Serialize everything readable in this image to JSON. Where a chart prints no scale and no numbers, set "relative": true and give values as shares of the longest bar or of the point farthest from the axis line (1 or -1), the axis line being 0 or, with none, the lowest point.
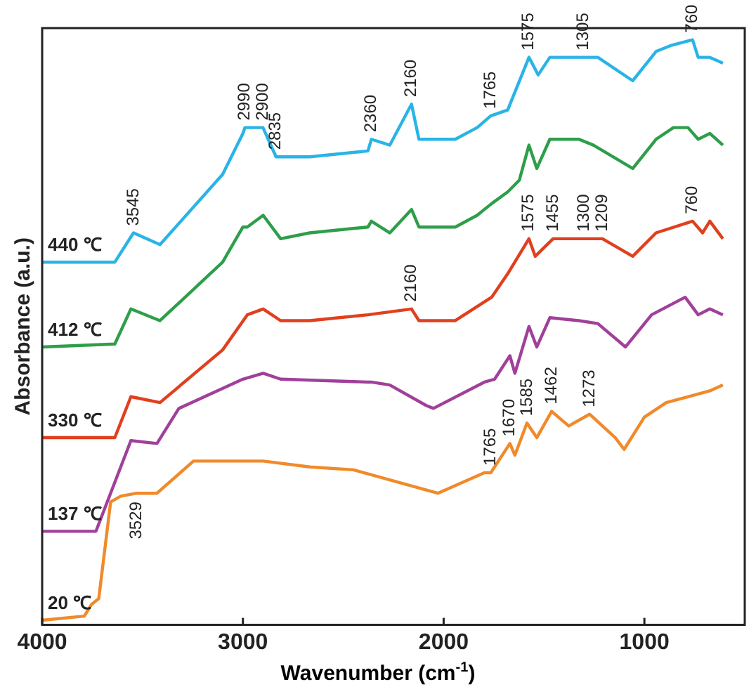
{
  "chart_data": {
    "type": "line",
    "relative": true,
    "xlabel": "Wavenumber (cm$^{-1}$)",
    "ylabel": "Absorbance (a.u.)",
    "xlim": [
      4000,
      500
    ],
    "xticks": [
      4000,
      3000,
      2000,
      1000
    ],
    "grid": false,
    "legend": false,
    "marker": "none",
    "line_style": "solid",
    "series": [
      {
        "name": "440 ℃",
        "color": "#2ab4e6",
        "x": [
          4000,
          3638,
          3545,
          3413,
          3101,
          3000,
          2990,
          2900,
          2835,
          2667,
          2377,
          2360,
          2268,
          2160,
          2123,
          1942,
          1833,
          1765,
          1681,
          1575,
          1529,
          1471,
          1399,
          1305,
          1232,
          1058,
          942,
          870,
          760,
          732,
          674,
          609
        ],
        "values": [
          0.62,
          0.62,
          0.67,
          0.65,
          0.77,
          0.84,
          0.85,
          0.85,
          0.8,
          0.8,
          0.81,
          0.83,
          0.82,
          0.89,
          0.83,
          0.83,
          0.85,
          0.87,
          0.88,
          0.97,
          0.94,
          0.97,
          0.97,
          0.97,
          0.97,
          0.93,
          0.98,
          0.99,
          1.0,
          0.97,
          0.97,
          0.96
        ]
      },
      {
        "name": "412 ℃",
        "color": "#2e9e4a",
        "x": [
          4000,
          3638,
          3558,
          3413,
          3101,
          3000,
          2978,
          2899,
          2812,
          2667,
          2377,
          2360,
          2268,
          2160,
          2123,
          1942,
          1833,
          1761,
          1681,
          1623,
          1575,
          1536,
          1471,
          1326,
          1254,
          1058,
          942,
          855,
          783,
          732,
          674,
          609
        ],
        "values": [
          0.475,
          0.48,
          0.54,
          0.52,
          0.62,
          0.68,
          0.68,
          0.7,
          0.66,
          0.67,
          0.68,
          0.69,
          0.67,
          0.71,
          0.68,
          0.68,
          0.7,
          0.72,
          0.74,
          0.76,
          0.82,
          0.78,
          0.83,
          0.83,
          0.82,
          0.78,
          0.83,
          0.85,
          0.85,
          0.83,
          0.84,
          0.82
        ]
      },
      {
        "name": "330 ℃",
        "color": "#e0401e",
        "x": [
          4000,
          3638,
          3558,
          3413,
          3101,
          2978,
          2899,
          2812,
          2667,
          2377,
          2160,
          2123,
          1942,
          1761,
          1681,
          1575,
          1544,
          1455,
          1300,
          1209,
          1058,
          942,
          760,
          710,
          674,
          609
        ],
        "values": [
          0.32,
          0.32,
          0.39,
          0.38,
          0.47,
          0.53,
          0.54,
          0.52,
          0.52,
          0.53,
          0.54,
          0.52,
          0.52,
          0.56,
          0.6,
          0.66,
          0.63,
          0.66,
          0.66,
          0.66,
          0.63,
          0.67,
          0.69,
          0.67,
          0.69,
          0.66
        ]
      },
      {
        "name": "137 ℃",
        "color": "#a0409a",
        "x": [
          4000,
          3732,
          3558,
          3428,
          3319,
          3000,
          2899,
          2812,
          2377,
          2360,
          2268,
          2087,
          2051,
          1797,
          1746,
          1670,
          1645,
          1575,
          1536,
          1471,
          1326,
          1232,
          1094,
          964,
          797,
          732,
          674,
          609
        ],
        "values": [
          0.16,
          0.16,
          0.315,
          0.31,
          0.37,
          0.42,
          0.43,
          0.42,
          0.415,
          0.415,
          0.41,
          0.375,
          0.37,
          0.415,
          0.42,
          0.46,
          0.43,
          0.51,
          0.475,
          0.525,
          0.52,
          0.515,
          0.475,
          0.53,
          0.56,
          0.53,
          0.54,
          0.53
        ]
      },
      {
        "name": "20 ℃",
        "color": "#f08a2a",
        "x": [
          4000,
          3790,
          3754,
          3718,
          3659,
          3609,
          3529,
          3428,
          3246,
          3101,
          2899,
          2667,
          2449,
          2029,
          1797,
          1765,
          1670,
          1645,
          1585,
          1536,
          1462,
          1377,
          1273,
          1145,
          1101,
          1000,
          891,
          783,
          674,
          609
        ],
        "values": [
          0.008,
          0.015,
          0.035,
          0.045,
          0.21,
          0.22,
          0.225,
          0.225,
          0.28,
          0.28,
          0.28,
          0.27,
          0.265,
          0.225,
          0.26,
          0.26,
          0.31,
          0.29,
          0.345,
          0.32,
          0.365,
          0.34,
          0.36,
          0.32,
          0.3,
          0.355,
          0.38,
          0.39,
          0.4,
          0.41
        ]
      }
    ],
    "annotations": [
      {
        "text": "3545",
        "x": 3545,
        "y": 0.67
      },
      {
        "text": "2990",
        "x": 2990,
        "y": 0.85
      },
      {
        "text": "2900",
        "x": 2900,
        "y": 0.85
      },
      {
        "text": "2835",
        "x": 2835,
        "y": 0.8
      },
      {
        "text": "2360",
        "x": 2360,
        "y": 0.83
      },
      {
        "text": "2160",
        "x": 2160,
        "y": 0.89
      },
      {
        "text": "1765",
        "x": 1765,
        "y": 0.87
      },
      {
        "text": "1575",
        "x": 1575,
        "y": 0.97
      },
      {
        "text": "1305",
        "x": 1305,
        "y": 0.97
      },
      {
        "text": "760",
        "x": 760,
        "y": 1.0
      },
      {
        "text": "2160",
        "x": 2160,
        "y": 0.54
      },
      {
        "text": "1575",
        "x": 1575,
        "y": 0.66
      },
      {
        "text": "1455",
        "x": 1455,
        "y": 0.66
      },
      {
        "text": "1300",
        "x": 1300,
        "y": 0.66
      },
      {
        "text": "1209",
        "x": 1209,
        "y": 0.66
      },
      {
        "text": "760",
        "x": 760,
        "y": 0.69
      },
      {
        "text": "3529",
        "x": 3529,
        "y": 0.225
      },
      {
        "text": "1765",
        "x": 1765,
        "y": 0.26
      },
      {
        "text": "1670",
        "x": 1670,
        "y": 0.31
      },
      {
        "text": "1585",
        "x": 1585,
        "y": 0.345
      },
      {
        "text": "1462",
        "x": 1462,
        "y": 0.365
      },
      {
        "text": "1273",
        "x": 1273,
        "y": 0.36
      }
    ]
  }
}
